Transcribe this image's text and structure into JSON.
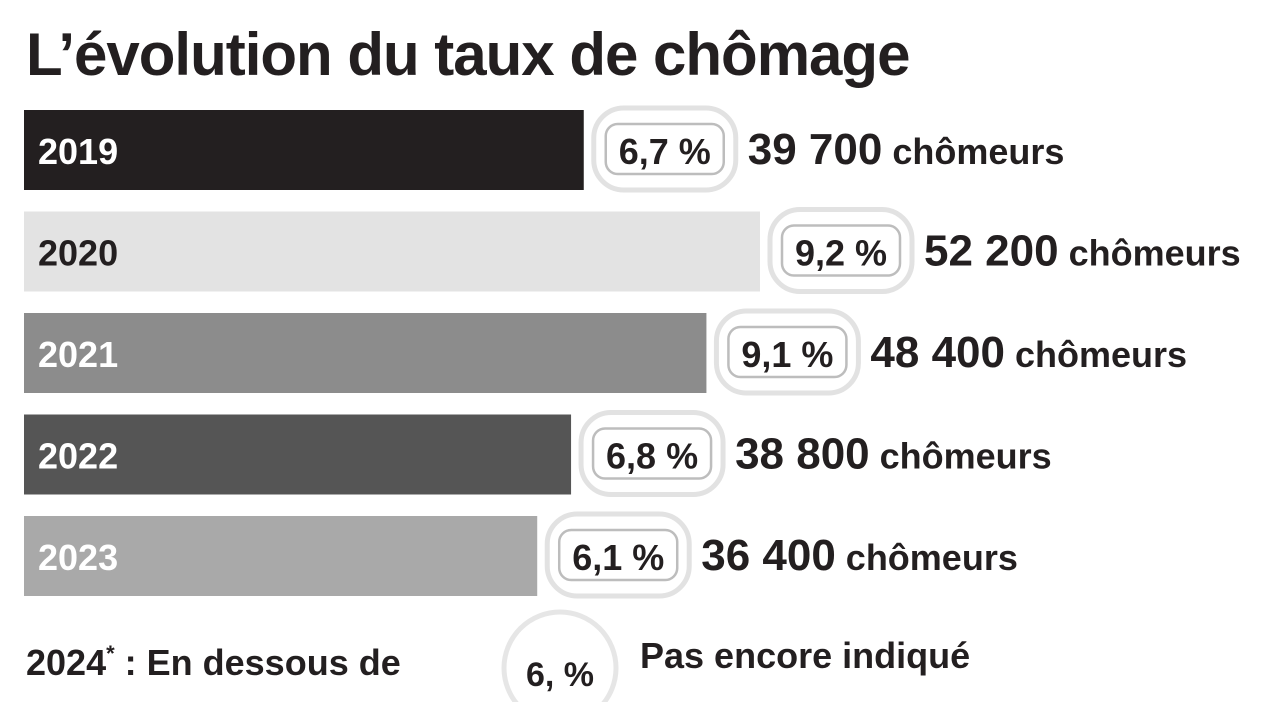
{
  "chart_data": {
    "type": "bar",
    "orientation": "horizontal",
    "title": "L’évolution du taux de chômage",
    "categories": [
      "2019",
      "2020",
      "2021",
      "2022",
      "2023"
    ],
    "values": [
      39700,
      52200,
      48400,
      38800,
      36400
    ],
    "value_labels": [
      "39 700",
      "52 200",
      "48 400",
      "38 800",
      "36 400"
    ],
    "unit": "chômeurs",
    "rate_labels": [
      "6,7 %",
      "9,2 %",
      "9,1 %",
      "6,8 %",
      "6,1 %"
    ],
    "colors": [
      "#231f20",
      "#e3e3e3",
      "#8c8c8c",
      "#555555",
      "#a9a9a9"
    ],
    "label_colors": [
      "#ffffff",
      "#231f20",
      "#ffffff",
      "#ffffff",
      "#ffffff"
    ],
    "note": {
      "year": "2024",
      "marker": "*",
      "text": " : En dessous de",
      "rate_label": "6, %",
      "status": "Pas encore indiqué"
    }
  }
}
